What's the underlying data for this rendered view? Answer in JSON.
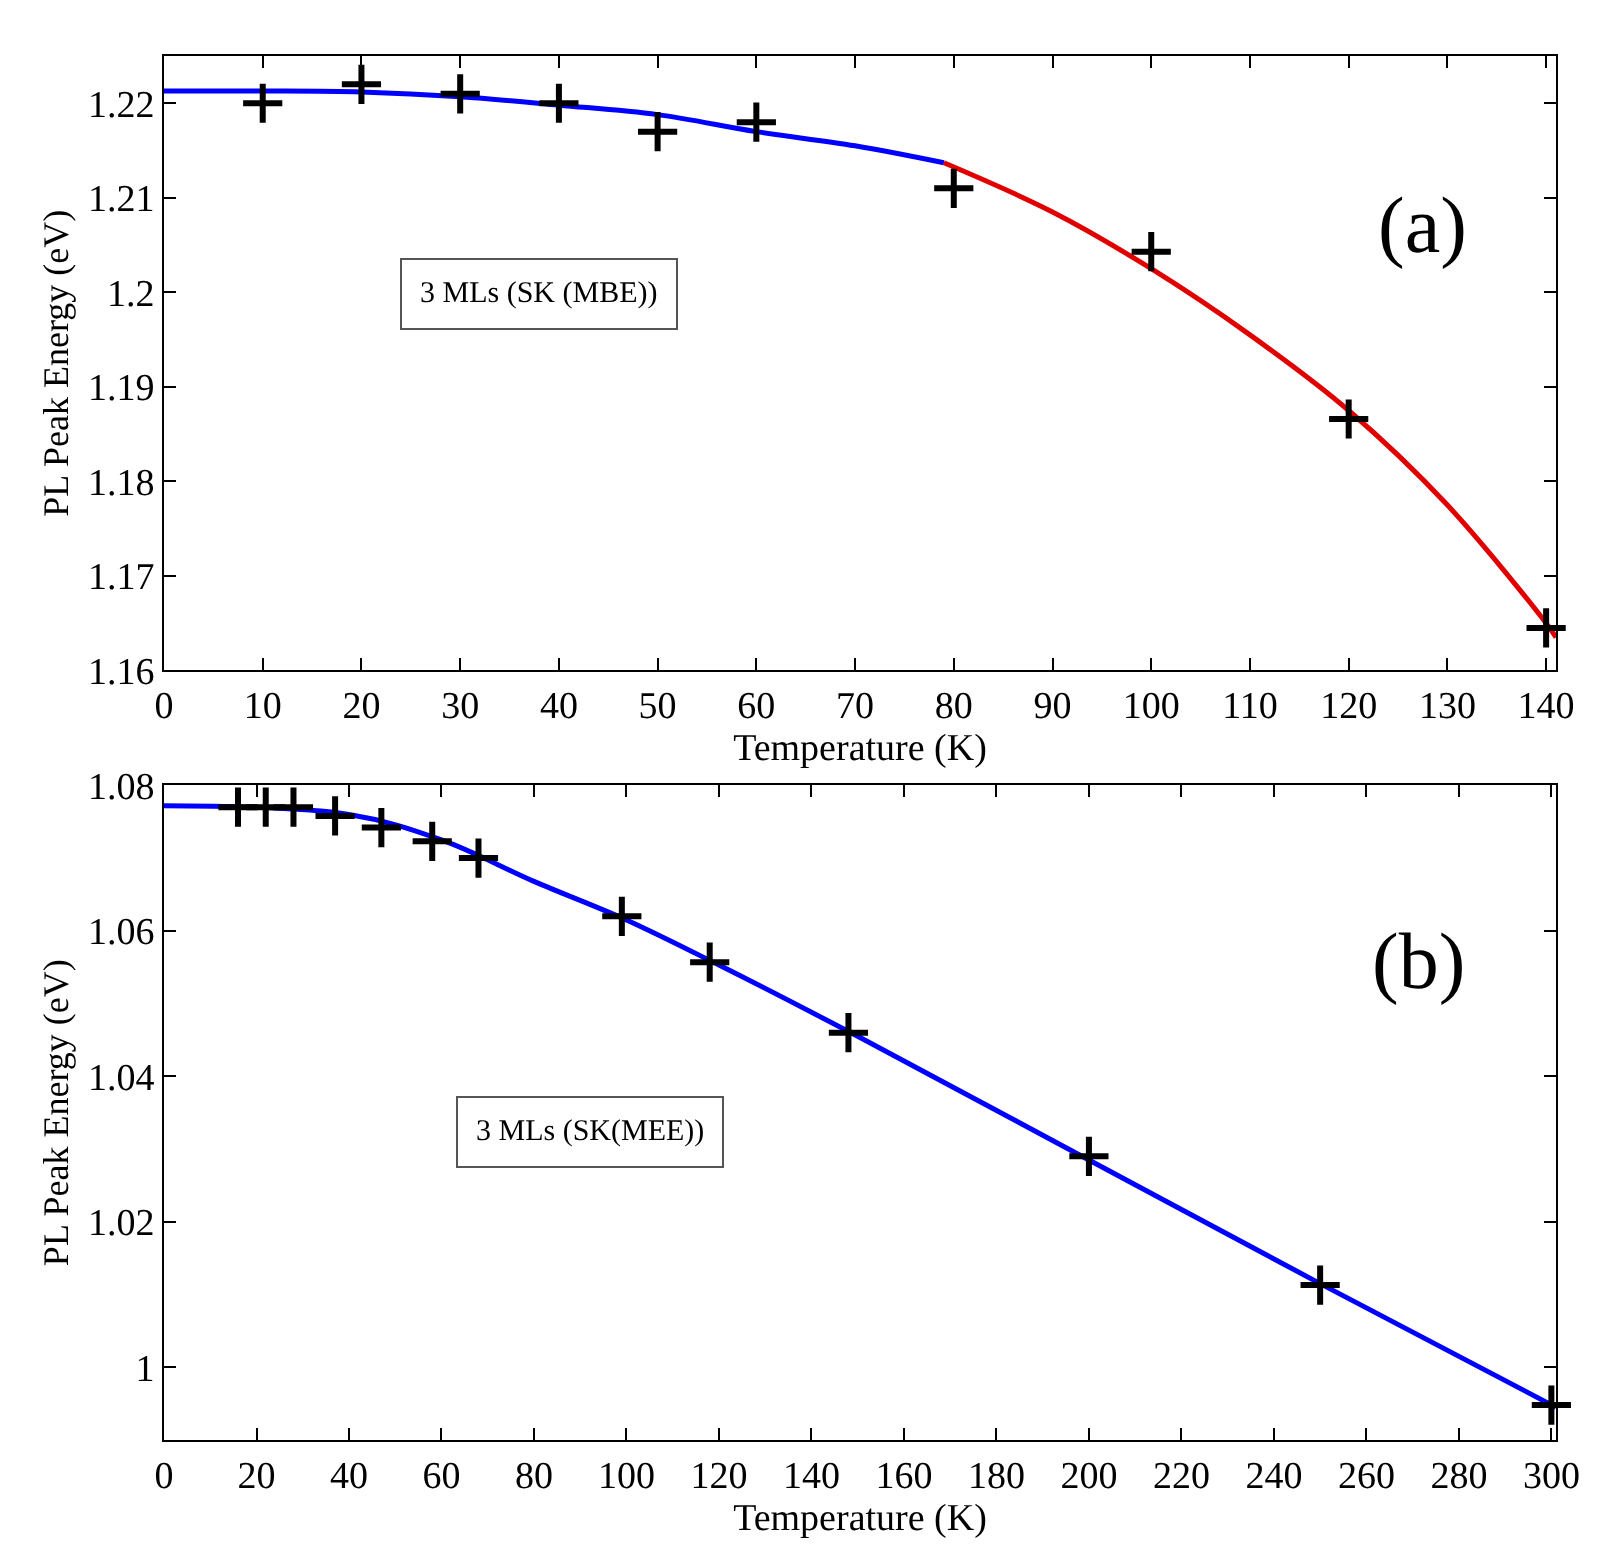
{
  "chart_data": [
    {
      "type": "scatter",
      "xlabel": "Temperature (K)",
      "ylabel": "PL Peak Energy (eV)",
      "annotations": [
        "(a)",
        "3 MLs (SK (MBE))"
      ],
      "xlim": [
        0,
        141
      ],
      "xticks": [
        0,
        10,
        20,
        30,
        40,
        50,
        60,
        70,
        80,
        90,
        100,
        110,
        120,
        130,
        140
      ],
      "ylim": [
        1.16,
        1.225
      ],
      "yticks": [
        1.16,
        1.17,
        1.18,
        1.19,
        1.2,
        1.21,
        1.22
      ],
      "series": [
        {
          "type": "line",
          "color": "#0000ff",
          "x": [
            0,
            10,
            20,
            30,
            40,
            50,
            60,
            70,
            79
          ],
          "values": [
            1.2213,
            1.2213,
            1.2212,
            1.2207,
            1.2198,
            1.2188,
            1.217,
            1.2155,
            1.2137
          ]
        },
        {
          "type": "line",
          "color": "#e00000",
          "x": [
            79,
            90,
            100,
            110,
            120,
            130,
            140,
            141
          ],
          "values": [
            1.2137,
            1.2085,
            1.2025,
            1.1955,
            1.1875,
            1.1775,
            1.165,
            1.1635
          ]
        },
        {
          "marker": "cross",
          "color": "#000000",
          "x": [
            10,
            20,
            30,
            40,
            50,
            60,
            80,
            100,
            120,
            140
          ],
          "values": [
            1.22,
            1.222,
            1.221,
            1.22,
            1.217,
            1.218,
            1.211,
            1.2043,
            1.1866,
            1.1645
          ]
        }
      ]
    },
    {
      "type": "scatter",
      "xlabel": "Temperature (K)",
      "ylabel": "PL Peak Energy (eV)",
      "annotations": [
        "(b)",
        "3 MLs (SK(MEE))"
      ],
      "xlim": [
        0,
        301
      ],
      "xticks": [
        0,
        20,
        40,
        60,
        80,
        100,
        120,
        140,
        160,
        180,
        200,
        220,
        240,
        260,
        280,
        300
      ],
      "ylim": [
        0.99,
        1.08
      ],
      "yticks": [
        1,
        1.02,
        1.04,
        1.06,
        1.08
      ],
      "series": [
        {
          "type": "line",
          "color": "#0000ff",
          "x": [
            0,
            40,
            60,
            80,
            100,
            120,
            150,
            200,
            250,
            301
          ],
          "values": [
            1.0772,
            1.076,
            1.0725,
            1.0668,
            1.0615,
            1.0553,
            1.0455,
            1.0285,
            1.0115,
            0.9945
          ]
        },
        {
          "marker": "cross",
          "color": "#000000",
          "x": [
            16,
            22,
            28,
            37,
            47,
            58,
            68,
            99,
            118,
            148,
            200,
            250,
            300
          ],
          "values": [
            1.077,
            1.077,
            1.077,
            1.0758,
            1.0742,
            1.0723,
            1.07,
            1.062,
            1.0557,
            1.046,
            1.029,
            1.0113,
            0.9948
          ]
        }
      ]
    }
  ]
}
